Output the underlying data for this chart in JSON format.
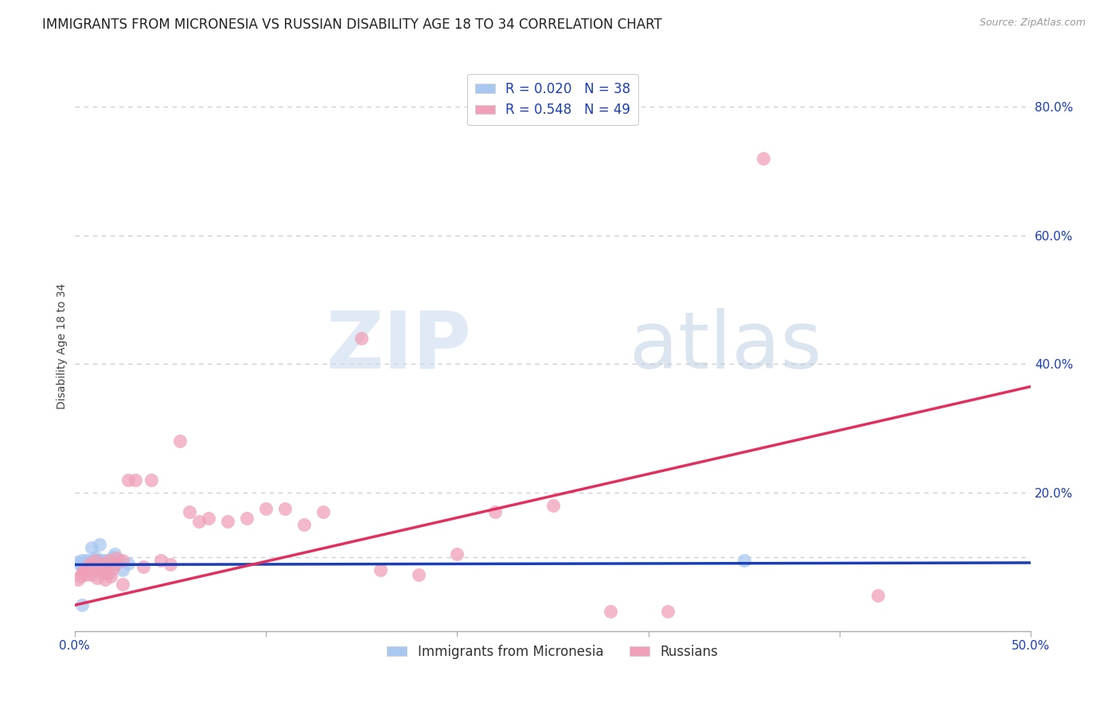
{
  "title": "IMMIGRANTS FROM MICRONESIA VS RUSSIAN DISABILITY AGE 18 TO 34 CORRELATION CHART",
  "source": "Source: ZipAtlas.com",
  "ylabel": "Disability Age 18 to 34",
  "xlim": [
    0.0,
    0.5
  ],
  "ylim": [
    -0.015,
    0.87
  ],
  "xticks": [
    0.0,
    0.1,
    0.2,
    0.3,
    0.4,
    0.5
  ],
  "xtick_labels": [
    "0.0%",
    "",
    "",
    "",
    "",
    "50.0%"
  ],
  "ytick_positions_right": [
    0.2,
    0.4,
    0.6,
    0.8
  ],
  "ytick_labels_right": [
    "20.0%",
    "40.0%",
    "60.0%",
    "80.0%"
  ],
  "blue_color": "#a8c8f0",
  "pink_color": "#f0a0b8",
  "blue_line_color": "#1a3eb8",
  "pink_line_color": "#e03060",
  "watermark_zip": "ZIP",
  "watermark_atlas": "atlas",
  "blue_scatter_x": [
    0.002,
    0.003,
    0.004,
    0.004,
    0.005,
    0.005,
    0.006,
    0.006,
    0.007,
    0.007,
    0.008,
    0.008,
    0.009,
    0.009,
    0.01,
    0.01,
    0.011,
    0.011,
    0.012,
    0.012,
    0.013,
    0.013,
    0.014,
    0.014,
    0.015,
    0.015,
    0.016,
    0.017,
    0.018,
    0.019,
    0.02,
    0.021,
    0.022,
    0.023,
    0.025,
    0.028,
    0.35,
    0.004
  ],
  "blue_scatter_y": [
    0.092,
    0.088,
    0.095,
    0.085,
    0.09,
    0.082,
    0.095,
    0.088,
    0.085,
    0.092,
    0.08,
    0.088,
    0.115,
    0.095,
    0.09,
    0.085,
    0.1,
    0.082,
    0.095,
    0.085,
    0.12,
    0.095,
    0.095,
    0.085,
    0.085,
    0.075,
    0.095,
    0.085,
    0.075,
    0.095,
    0.1,
    0.105,
    0.09,
    0.095,
    0.08,
    0.09,
    0.095,
    0.025
  ],
  "pink_scatter_x": [
    0.002,
    0.003,
    0.004,
    0.005,
    0.006,
    0.007,
    0.008,
    0.009,
    0.01,
    0.011,
    0.012,
    0.013,
    0.014,
    0.015,
    0.016,
    0.017,
    0.018,
    0.019,
    0.02,
    0.021,
    0.022,
    0.025,
    0.028,
    0.032,
    0.036,
    0.04,
    0.045,
    0.05,
    0.055,
    0.06,
    0.065,
    0.07,
    0.08,
    0.09,
    0.1,
    0.11,
    0.12,
    0.13,
    0.15,
    0.16,
    0.18,
    0.2,
    0.22,
    0.25,
    0.28,
    0.31,
    0.36,
    0.42,
    0.025
  ],
  "pink_scatter_y": [
    0.065,
    0.07,
    0.075,
    0.08,
    0.072,
    0.085,
    0.09,
    0.072,
    0.085,
    0.095,
    0.068,
    0.08,
    0.085,
    0.09,
    0.065,
    0.075,
    0.095,
    0.07,
    0.082,
    0.088,
    0.098,
    0.095,
    0.22,
    0.22,
    0.085,
    0.22,
    0.095,
    0.088,
    0.28,
    0.17,
    0.155,
    0.16,
    0.155,
    0.16,
    0.175,
    0.175,
    0.15,
    0.17,
    0.44,
    0.08,
    0.072,
    0.105,
    0.17,
    0.18,
    0.015,
    0.015,
    0.72,
    0.04,
    0.058
  ],
  "blue_line_x": [
    0.0,
    0.5
  ],
  "blue_line_y": [
    0.088,
    0.091
  ],
  "pink_line_x": [
    0.0,
    0.5
  ],
  "pink_line_y": [
    0.025,
    0.365
  ],
  "grid_color": "#d0d0d0",
  "grid_dash": [
    4,
    4
  ],
  "background_color": "#ffffff",
  "title_fontsize": 12,
  "axis_label_fontsize": 10,
  "tick_fontsize": 11,
  "legend_fontsize": 12
}
